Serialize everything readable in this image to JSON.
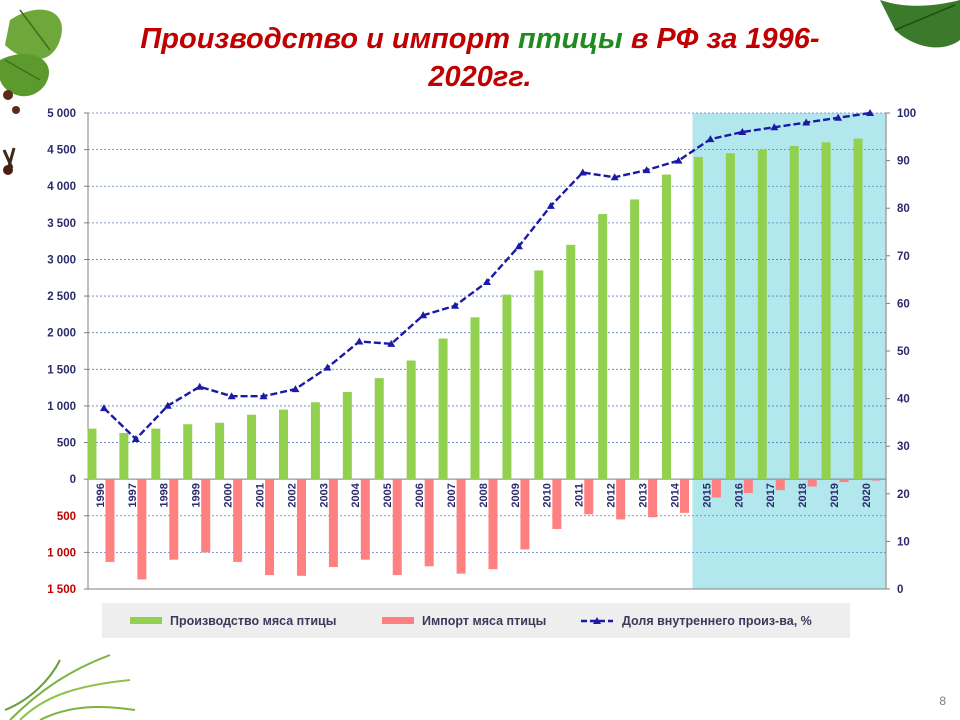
{
  "title": {
    "part1": "Производство и импорт ",
    "part2": "птицы",
    "part3": " в РФ за 1996-2020гг."
  },
  "page_number": "8",
  "legend": {
    "production": "Производство мяса птицы",
    "import": "Импорт мяса птицы",
    "share": "Доля внутреннего произ-ва, %"
  },
  "colors": {
    "production": "#92d050",
    "import": "#ff8080",
    "share": "#1a1aa6",
    "highlight": "#b3e7ee",
    "title": "#c00000",
    "title_accent": "#1e8c1e"
  },
  "chart_data": {
    "type": "bar",
    "categories": [
      "1996",
      "1997",
      "1998",
      "1999",
      "2000",
      "2001",
      "2002",
      "2003",
      "2004",
      "2005",
      "2006",
      "2007",
      "2008",
      "2009",
      "2010",
      "2011",
      "2012",
      "2013",
      "2014",
      "2015",
      "2016",
      "2017",
      "2018",
      "2019",
      "2020"
    ],
    "series": [
      {
        "name": "Производство мяса птицы",
        "type": "bar",
        "axis": "left",
        "values": [
          690,
          630,
          690,
          750,
          770,
          880,
          950,
          1050,
          1190,
          1380,
          1620,
          1920,
          2210,
          2520,
          2850,
          3200,
          3620,
          3820,
          4160,
          4400,
          4450,
          4500,
          4550,
          4600,
          4650
        ]
      },
      {
        "name": "Импорт мяса птицы",
        "type": "bar",
        "axis": "left",
        "values": [
          -1130,
          -1370,
          -1100,
          -1000,
          -1130,
          -1310,
          -1320,
          -1200,
          -1100,
          -1310,
          -1190,
          -1290,
          -1230,
          -960,
          -680,
          -480,
          -550,
          -520,
          -460,
          -250,
          -190,
          -150,
          -100,
          -40,
          -20
        ]
      },
      {
        "name": "Доля внутреннего произ-ва, %",
        "type": "line",
        "axis": "right",
        "values": [
          38,
          31.5,
          38.5,
          42.5,
          40.5,
          40.5,
          42,
          46.5,
          52,
          51.5,
          57.5,
          59.5,
          64.5,
          72,
          80.5,
          87.5,
          86.5,
          88,
          90,
          94.5,
          96,
          97,
          98,
          99,
          100
        ]
      }
    ],
    "left_axis": {
      "ylim": [
        -1500,
        5000
      ],
      "ticks": [
        {
          "v": 5000,
          "label": "5 000"
        },
        {
          "v": 4500,
          "label": "4 500"
        },
        {
          "v": 4000,
          "label": "4 000"
        },
        {
          "v": 3500,
          "label": "3 500"
        },
        {
          "v": 3000,
          "label": "3 000"
        },
        {
          "v": 2500,
          "label": "2 500"
        },
        {
          "v": 2000,
          "label": "2 000"
        },
        {
          "v": 1500,
          "label": "1 500"
        },
        {
          "v": 1000,
          "label": "1 000"
        },
        {
          "v": 500,
          "label": "500"
        },
        {
          "v": 0,
          "label": "0"
        },
        {
          "v": -500,
          "label": "500"
        },
        {
          "v": -1000,
          "label": "1 000"
        },
        {
          "v": -1500,
          "label": "1 500"
        }
      ]
    },
    "right_axis": {
      "ylim": [
        0,
        100
      ],
      "ticks": [
        100,
        90,
        80,
        70,
        60,
        50,
        40,
        30,
        20,
        10,
        0
      ]
    },
    "highlight_range": [
      "2015",
      "2020"
    ],
    "grid": true,
    "legend_position": "bottom"
  }
}
